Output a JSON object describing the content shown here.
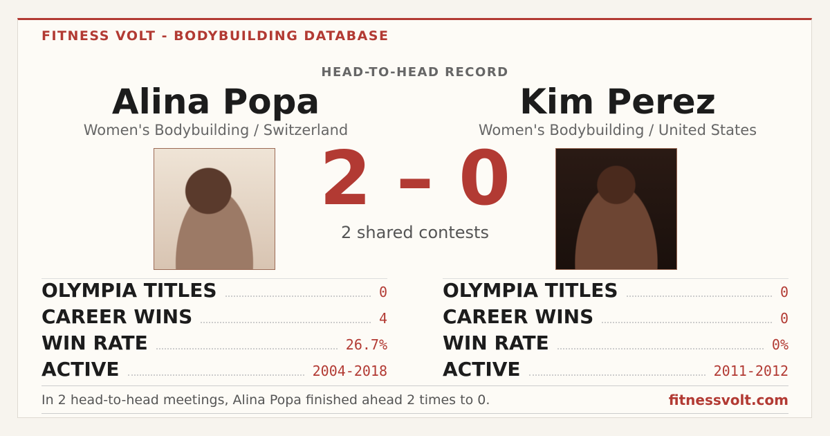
{
  "header": {
    "brand": "FITNESS VOLT - BODYBUILDING DATABASE",
    "kicker": "HEAD-TO-HEAD RECORD"
  },
  "left": {
    "name": "Alina Popa",
    "subtitle": "Women's Bodybuilding / Switzerland",
    "stats": [
      [
        "OLYMPIA TITLES",
        "0"
      ],
      [
        "CAREER WINS",
        "4"
      ],
      [
        "WIN RATE",
        "26.7%"
      ],
      [
        "ACTIVE",
        "2004-2018"
      ]
    ]
  },
  "right": {
    "name": "Kim Perez",
    "subtitle": "Women's Bodybuilding / United States",
    "stats": [
      [
        "OLYMPIA TITLES",
        "0"
      ],
      [
        "CAREER WINS",
        "0"
      ],
      [
        "WIN RATE",
        "0%"
      ],
      [
        "ACTIVE",
        "2011-2012"
      ]
    ]
  },
  "score": {
    "left": "2",
    "separator": "–",
    "right": "0",
    "caption": "2 shared contests"
  },
  "footer": {
    "summary": "In 2 head-to-head meetings, Alina Popa finished ahead 2 times to 0.",
    "site": "fitnessvolt.com"
  }
}
